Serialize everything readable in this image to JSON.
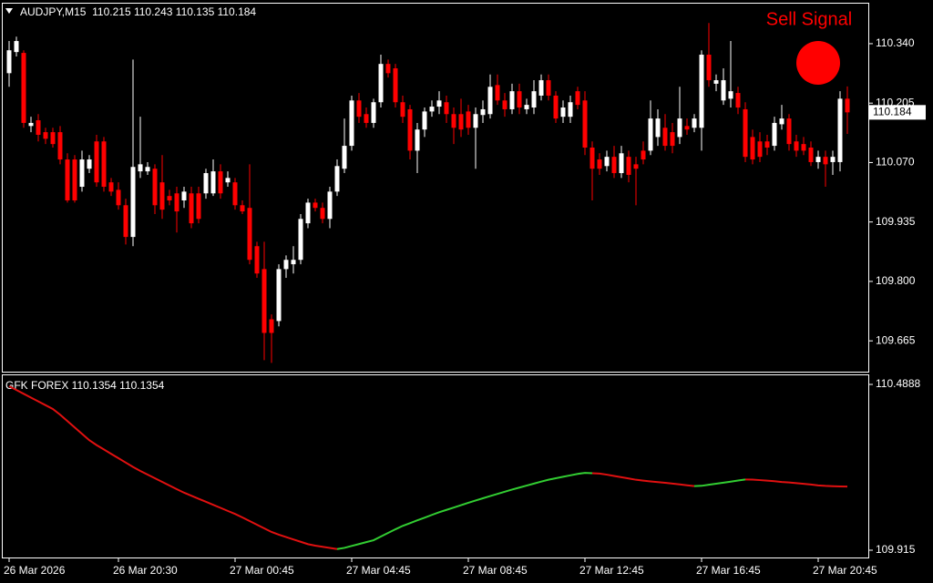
{
  "chart_data": [
    {
      "type": "candlestick",
      "title": "AUDJPY,M15  110.215 110.243 110.135 110.184",
      "annotation": "Sell Signal",
      "up_color": "#ffffff",
      "down_color": "#ff0000",
      "signal_color": "#ff0000",
      "ylim": [
        109.595,
        110.433
      ],
      "yticks": [
        {
          "value": 110.34,
          "label": "110.340"
        },
        {
          "value": 110.205,
          "label": "110.205"
        },
        {
          "value": 110.07,
          "label": "110.070"
        },
        {
          "value": 109.935,
          "label": "109.935"
        },
        {
          "value": 109.8,
          "label": "109.800"
        },
        {
          "value": 109.665,
          "label": "109.665"
        }
      ],
      "last_price": 110.184,
      "categories": [
        "26 Mar 2026",
        null,
        null,
        null,
        null,
        null,
        null,
        null,
        null,
        null,
        null,
        null,
        null,
        null,
        null,
        "26 Mar 20:30",
        null,
        null,
        null,
        null,
        null,
        null,
        null,
        null,
        null,
        null,
        null,
        null,
        null,
        null,
        null,
        "27 Mar 00:45",
        null,
        null,
        null,
        null,
        null,
        null,
        null,
        null,
        null,
        null,
        null,
        null,
        null,
        null,
        null,
        "27 Mar 04:45",
        null,
        null,
        null,
        null,
        null,
        null,
        null,
        null,
        null,
        null,
        null,
        null,
        null,
        null,
        null,
        "27 Mar 08:45",
        null,
        null,
        null,
        null,
        null,
        null,
        null,
        null,
        null,
        null,
        null,
        null,
        null,
        null,
        null,
        "27 Mar 12:45",
        null,
        null,
        null,
        null,
        null,
        null,
        null,
        null,
        null,
        null,
        null,
        null,
        null,
        null,
        null,
        "27 Mar 16:45",
        null,
        null,
        null,
        null,
        null,
        null,
        null,
        null,
        null,
        null,
        null,
        null,
        null,
        null,
        null,
        "27 Mar 20:45",
        null,
        null,
        null,
        null
      ],
      "open": [
        110.273,
        110.321,
        110.319,
        110.153,
        110.166,
        110.139,
        110.139,
        110.139,
        110.077,
        110.077,
        110.015,
        110.056,
        110.118,
        110.118,
        110.025,
        110.008,
        109.973,
        109.901,
        110.05,
        110.05,
        110.056,
        110.025,
        109.994,
        110.0,
        109.984,
        110.0,
        110.0,
        110.0,
        110.0,
        110.05,
        110.025,
        110.025,
        109.973,
        109.967,
        109.88,
        109.828,
        109.714,
        109.71,
        109.828,
        109.839,
        109.849,
        109.932,
        109.979,
        109.967,
        109.942,
        110.004,
        110.056,
        110.108,
        110.211,
        110.18,
        110.16,
        110.207,
        110.294,
        110.284,
        110.207,
        110.191,
        110.097,
        110.145,
        110.186,
        110.197,
        110.207,
        110.18,
        110.18,
        110.186,
        110.149,
        110.178,
        110.18,
        110.246,
        110.211,
        110.191,
        110.232,
        110.191,
        110.195,
        110.222,
        110.257,
        110.222,
        110.174,
        110.174,
        110.232,
        110.211,
        110.104,
        110.077,
        110.062,
        110.083,
        110.046,
        110.083,
        110.066,
        110.097,
        110.097,
        110.128,
        110.149,
        110.139,
        110.128,
        110.153,
        110.149,
        110.149,
        110.315,
        110.249,
        110.211,
        110.215,
        110.228,
        110.191,
        110.128,
        110.118,
        110.118,
        110.108,
        110.157,
        110.17,
        110.118,
        110.112,
        110.104,
        110.071,
        110.083,
        110.071,
        110.071,
        110.215
      ],
      "high": [
        110.346,
        110.356,
        110.325,
        110.174,
        110.18,
        110.149,
        110.149,
        110.153,
        110.091,
        110.087,
        110.097,
        110.087,
        110.133,
        110.128,
        110.035,
        110.025,
        109.988,
        110.304,
        110.174,
        110.071,
        110.066,
        110.087,
        110.008,
        110.015,
        110.015,
        110.015,
        110.015,
        110.056,
        110.077,
        110.066,
        110.05,
        110.035,
        109.984,
        110.066,
        109.89,
        109.89,
        109.725,
        109.839,
        109.859,
        109.88,
        109.953,
        109.988,
        109.988,
        109.979,
        110.015,
        110.077,
        110.17,
        110.222,
        110.228,
        110.195,
        110.215,
        110.315,
        110.304,
        110.294,
        110.222,
        110.201,
        110.16,
        110.195,
        110.211,
        110.232,
        110.222,
        110.195,
        110.215,
        110.201,
        110.195,
        110.211,
        110.27,
        110.27,
        110.228,
        110.249,
        110.249,
        110.215,
        110.257,
        110.27,
        110.27,
        110.232,
        110.211,
        110.222,
        110.242,
        110.232,
        110.118,
        110.091,
        110.097,
        110.108,
        110.108,
        110.097,
        110.083,
        110.118,
        110.211,
        110.191,
        110.18,
        110.16,
        110.242,
        110.17,
        110.18,
        110.325,
        110.387,
        110.27,
        110.284,
        110.346,
        110.242,
        110.207,
        110.145,
        110.139,
        110.133,
        110.174,
        110.201,
        110.18,
        110.133,
        110.128,
        110.118,
        110.097,
        110.097,
        110.097,
        110.232,
        110.243
      ],
      "low": [
        110.242,
        110.311,
        110.149,
        110.139,
        110.118,
        110.112,
        110.104,
        110.066,
        109.979,
        109.979,
        110.004,
        110.046,
        110.015,
        110.004,
        109.994,
        109.963,
        109.884,
        109.88,
        110.035,
        110.042,
        109.953,
        109.942,
        109.973,
        109.911,
        109.967,
        109.921,
        109.932,
        109.988,
        109.994,
        109.988,
        110.015,
        109.963,
        109.953,
        109.839,
        109.808,
        109.621,
        109.615,
        109.698,
        109.808,
        109.818,
        109.839,
        109.921,
        109.959,
        109.932,
        109.921,
        109.994,
        110.046,
        110.097,
        110.16,
        110.149,
        110.149,
        110.195,
        110.263,
        110.195,
        110.16,
        110.077,
        110.046,
        110.128,
        110.174,
        110.18,
        110.16,
        110.112,
        110.128,
        110.133,
        110.056,
        110.16,
        110.17,
        110.201,
        110.174,
        110.18,
        110.18,
        110.18,
        110.18,
        110.211,
        110.211,
        110.16,
        110.16,
        110.16,
        110.191,
        110.087,
        109.984,
        110.042,
        110.05,
        110.035,
        110.035,
        110.025,
        109.973,
        110.066,
        110.087,
        110.108,
        110.097,
        110.091,
        110.112,
        110.133,
        110.139,
        110.097,
        110.242,
        110.232,
        110.201,
        110.195,
        110.18,
        110.071,
        110.066,
        110.071,
        110.087,
        110.097,
        110.145,
        110.097,
        110.083,
        110.087,
        110.062,
        110.056,
        110.015,
        110.042,
        110.05,
        110.135
      ],
      "close": [
        110.325,
        110.346,
        110.16,
        110.16,
        110.133,
        110.124,
        110.112,
        110.077,
        109.984,
        109.984,
        110.077,
        110.077,
        110.025,
        110.015,
        110.004,
        109.973,
        109.901,
        110.06,
        110.066,
        110.06,
        109.973,
        109.963,
        109.984,
        109.959,
        110.004,
        109.932,
        109.942,
        110.046,
        110.05,
        110.0,
        110.035,
        109.973,
        109.959,
        109.849,
        109.818,
        109.683,
        109.683,
        109.828,
        109.849,
        109.849,
        109.942,
        109.979,
        109.967,
        109.942,
        110.004,
        110.062,
        110.108,
        110.211,
        110.174,
        110.16,
        110.207,
        110.294,
        110.273,
        110.207,
        110.174,
        110.097,
        110.145,
        110.186,
        110.197,
        110.211,
        110.18,
        110.149,
        110.145,
        110.149,
        110.18,
        110.191,
        110.242,
        110.211,
        110.191,
        110.232,
        110.195,
        110.201,
        110.232,
        110.257,
        110.222,
        110.17,
        110.195,
        110.207,
        110.201,
        110.104,
        110.056,
        110.056,
        110.083,
        110.046,
        110.091,
        110.042,
        110.056,
        110.077,
        110.17,
        110.17,
        110.108,
        110.108,
        110.17,
        110.145,
        110.17,
        110.315,
        110.257,
        110.257,
        110.257,
        110.232,
        110.195,
        110.083,
        110.077,
        110.083,
        110.104,
        110.16,
        110.17,
        110.112,
        110.097,
        110.097,
        110.071,
        110.083,
        110.066,
        110.083,
        110.215,
        110.184
      ]
    },
    {
      "type": "line",
      "title": "GFK FOREX 110.1354 110.1354",
      "ylim": [
        109.8898,
        110.5235
      ],
      "yticks": [
        110.4888,
        109.915
      ],
      "series": [
        {
          "color": "#e01010",
          "values": [
            110.4825,
            110.4694,
            110.4563,
            110.4431,
            110.43,
            110.4169,
            110.4038,
            110.384,
            110.3619,
            110.3399,
            110.3178,
            110.2957,
            110.2788,
            110.2637,
            110.2485,
            110.2334,
            110.2183,
            110.2032,
            110.1893,
            110.1767,
            110.1641,
            110.1515,
            110.1388,
            110.1262,
            110.1141,
            110.1036,
            110.0931,
            110.0826,
            110.0721,
            110.0616,
            110.051,
            110.0405,
            110.0285,
            110.0159,
            110.0033,
            109.9907,
            109.9781,
            109.9688,
            109.9606,
            109.9524,
            109.9442,
            109.936,
            109.9309,
            109.9269,
            109.9229,
            109.9189,
            null,
            null,
            null,
            null,
            null,
            null,
            null,
            null,
            null,
            null,
            null,
            null,
            null,
            null,
            null,
            null,
            null,
            null,
            null,
            null,
            null,
            null,
            null,
            null,
            null,
            null,
            null,
            null,
            null,
            null,
            null,
            null,
            null,
            null,
            110.1814,
            110.1801,
            110.1765,
            110.1721,
            110.1677,
            110.1632,
            110.1588,
            110.1558,
            110.1532,
            110.1507,
            110.1482,
            110.1457,
            110.1428,
            110.1398,
            110.1368,
            null,
            null,
            null,
            null,
            null,
            null,
            110.1599,
            110.1595,
            110.1576,
            110.1557,
            110.1538,
            110.1509,
            110.1496,
            110.1472,
            110.1448,
            110.1424,
            110.1394,
            110.1376,
            110.1367,
            110.1359,
            110.1354
          ]
        },
        {
          "color": "#32cd32",
          "values": [
            null,
            null,
            null,
            null,
            null,
            null,
            null,
            null,
            null,
            null,
            null,
            null,
            null,
            null,
            null,
            null,
            null,
            null,
            null,
            null,
            null,
            null,
            null,
            null,
            null,
            null,
            null,
            null,
            null,
            null,
            null,
            null,
            null,
            null,
            null,
            null,
            null,
            null,
            null,
            null,
            null,
            null,
            null,
            null,
            null,
            109.9189,
            109.9231,
            109.9297,
            109.9363,
            109.943,
            109.9496,
            109.9622,
            109.9748,
            109.9874,
            109.9993,
            110.0088,
            110.0183,
            110.0277,
            110.0372,
            110.0463,
            110.0545,
            110.0627,
            110.0709,
            110.0791,
            110.0871,
            110.0947,
            110.1023,
            110.1098,
            110.1174,
            110.1248,
            110.1317,
            110.1386,
            110.1456,
            110.1525,
            110.159,
            110.164,
            110.1691,
            110.1741,
            110.1792,
            110.1827,
            110.1814,
            null,
            null,
            null,
            null,
            null,
            null,
            null,
            null,
            null,
            null,
            null,
            null,
            null,
            110.1368,
            110.1379,
            110.1415,
            110.1451,
            110.1487,
            110.1523,
            110.1561,
            110.1599,
            null,
            null,
            null,
            null,
            null,
            null,
            null,
            null,
            null,
            null,
            null,
            null,
            null,
            null
          ]
        }
      ]
    }
  ]
}
